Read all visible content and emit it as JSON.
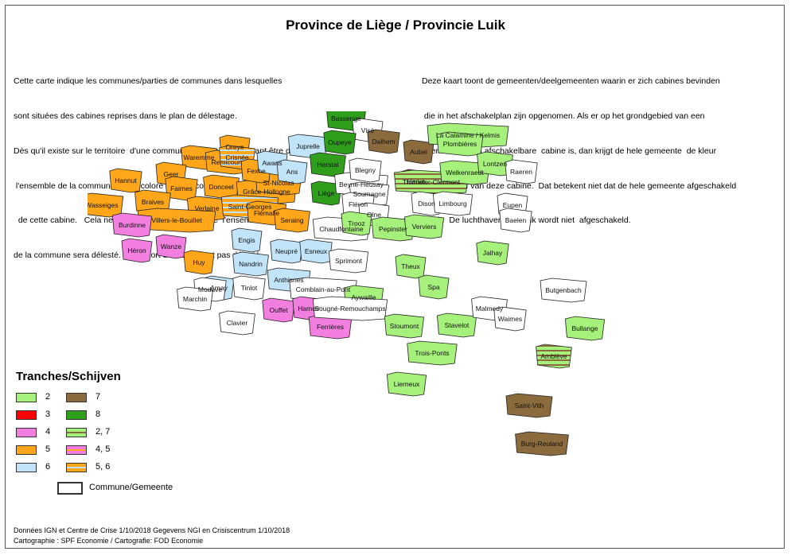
{
  "title": "Province de Liège / Provincie Luik",
  "description_fr": [
    "Cette carte indique les communes/parties de communes dans lesquelles",
    "sont situées des cabines reprises dans le plan de délestage.",
    "Dès qu'il existe sur le territoire  d'une commune, une cabine pouvant être délestée,",
    " l'ensemble de la commune  a été coloré dans la couleur de la tranche",
    "  de cette cabine.   Cela ne signifie pas pour autant que  l'ensemble",
    "de la commune sera délesté. L'aéroport de Liège n'est pas délesté."
  ],
  "description_nl": [
    "Deze kaart toont de gemeenten/deelgemeenten waarin er zich cabines bevinden",
    " die in het afschakelplan zijn opgenomen. Als er op het grondgebied van een",
    "  gemeente  een afschakelbare  cabine is, dan krijgt de hele gemeente  de kleur",
    "van de schijf van deze cabine.  Dat betekent niet dat de hele gemeente afgeschakeld",
    "wordt.  De luchthaven van Luik wordt niet  afgeschakeld."
  ],
  "legend": {
    "title": "Tranches/Schijven",
    "items": [
      {
        "label": "2",
        "color": "#a6f07c",
        "pattern": "solid"
      },
      {
        "label": "3",
        "color": "#ff0000",
        "pattern": "solid"
      },
      {
        "label": "4",
        "color": "#f27ee0",
        "pattern": "solid"
      },
      {
        "label": "5",
        "color": "#ffa61a",
        "pattern": "solid"
      },
      {
        "label": "6",
        "color": "#c2e4f8",
        "pattern": "solid"
      },
      {
        "label": "7",
        "color": "#8b6b3d",
        "pattern": "solid"
      },
      {
        "label": "8",
        "color": "#2f9e1b",
        "pattern": "solid"
      },
      {
        "label": "2, 7",
        "color": "#a6f07c",
        "pattern": "stripes-7"
      },
      {
        "label": "4, 5",
        "color": "#f27ee0",
        "pattern": "stripes-5"
      },
      {
        "label": "5, 6",
        "color": "#ffa61a",
        "pattern": "stripes-6"
      },
      {
        "label": "Commune/Gemeente",
        "color": "#ffffff",
        "pattern": "solid"
      }
    ]
  },
  "communes": [
    {
      "name": "Oreye",
      "tranche": "5"
    },
    {
      "name": "Hannut",
      "tranche": "5"
    },
    {
      "name": "Waremme",
      "tranche": "5"
    },
    {
      "name": "Remicourt",
      "tranche": "5"
    },
    {
      "name": "Geer",
      "tranche": "5"
    },
    {
      "name": "Faimes",
      "tranche": "5"
    },
    {
      "name": "Donceel",
      "tranche": "5"
    },
    {
      "name": "Wasseiges",
      "tranche": "5"
    },
    {
      "name": "Braives",
      "tranche": "5"
    },
    {
      "name": "Verlaine",
      "tranche": "5"
    },
    {
      "name": "Villers-le-Bouillet",
      "tranche": "5"
    },
    {
      "name": "Burdinne",
      "tranche": "4"
    },
    {
      "name": "Héron",
      "tranche": "4"
    },
    {
      "name": "Wanze",
      "tranche": "4"
    },
    {
      "name": "Huy",
      "tranche": "5"
    },
    {
      "name": "Amay",
      "tranche": "6"
    },
    {
      "name": "Engis",
      "tranche": "6"
    },
    {
      "name": "Nandrin",
      "tranche": "6"
    },
    {
      "name": "Neupré",
      "tranche": "6"
    },
    {
      "name": "Esneux",
      "tranche": "6"
    },
    {
      "name": "Anthisnes",
      "tranche": "6"
    },
    {
      "name": "Comblain-au-Pont",
      "tranche": ""
    },
    {
      "name": "Modave",
      "tranche": ""
    },
    {
      "name": "Marchin",
      "tranche": ""
    },
    {
      "name": "Tinlot",
      "tranche": ""
    },
    {
      "name": "Clavier",
      "tranche": ""
    },
    {
      "name": "Ouffet",
      "tranche": "4"
    },
    {
      "name": "Hamoir",
      "tranche": "4"
    },
    {
      "name": "Ferrières",
      "tranche": "4"
    },
    {
      "name": "Grâce-Hollogne",
      "tranche": "5"
    },
    {
      "name": "Saint-Georges",
      "tranche": "5, 6"
    },
    {
      "name": "St-Nicolas",
      "tranche": "5"
    },
    {
      "name": "Flémalle",
      "tranche": "5"
    },
    {
      "name": "Seraing",
      "tranche": "5"
    },
    {
      "name": "Crisnée",
      "tranche": "5, 6"
    },
    {
      "name": "Fexhe",
      "tranche": "5"
    },
    {
      "name": "Awans",
      "tranche": "6"
    },
    {
      "name": "Juprelle",
      "tranche": "6"
    },
    {
      "name": "Ans",
      "tranche": "6"
    },
    {
      "name": "Bassenge",
      "tranche": "8"
    },
    {
      "name": "Visé",
      "tranche": ""
    },
    {
      "name": "Oupeye",
      "tranche": "8"
    },
    {
      "name": "Herstal",
      "tranche": "8"
    },
    {
      "name": "Liège",
      "tranche": "8"
    },
    {
      "name": "Beyne-Heusay",
      "tranche": ""
    },
    {
      "name": "Soumagne",
      "tranche": ""
    },
    {
      "name": "Blegny",
      "tranche": ""
    },
    {
      "name": "Fléron",
      "tranche": ""
    },
    {
      "name": "Olne",
      "tranche": ""
    },
    {
      "name": "Chaudfontaine",
      "tranche": ""
    },
    {
      "name": "Trooz",
      "tranche": "2"
    },
    {
      "name": "Pepinster",
      "tranche": "2"
    },
    {
      "name": "Sprimont",
      "tranche": ""
    },
    {
      "name": "Dalhem",
      "tranche": "7"
    },
    {
      "name": "Aubel",
      "tranche": "7"
    },
    {
      "name": "Herve",
      "tranche": "7"
    },
    {
      "name": "Thimister-Clermont",
      "tranche": "2, 7"
    },
    {
      "name": "La Calamine / Kelmis",
      "tranche": "2"
    },
    {
      "name": "Plombières",
      "tranche": "2"
    },
    {
      "name": "Welkenraedt",
      "tranche": "2"
    },
    {
      "name": "Lontzen",
      "tranche": "2"
    },
    {
      "name": "Raeren",
      "tranche": ""
    },
    {
      "name": "Dison",
      "tranche": ""
    },
    {
      "name": "Limbourg",
      "tranche": ""
    },
    {
      "name": "Eupen",
      "tranche": ""
    },
    {
      "name": "Baelen",
      "tranche": ""
    },
    {
      "name": "Verviers",
      "tranche": "2"
    },
    {
      "name": "Jalhay",
      "tranche": "2"
    },
    {
      "name": "Theux",
      "tranche": "2"
    },
    {
      "name": "Spa",
      "tranche": "2"
    },
    {
      "name": "Aywaille",
      "tranche": "2"
    },
    {
      "name": "Sougné-Remouchamps",
      "tranche": ""
    },
    {
      "name": "Stoumont",
      "tranche": "2"
    },
    {
      "name": "Stavelot",
      "tranche": "2"
    },
    {
      "name": "Trois-Ponts",
      "tranche": "2"
    },
    {
      "name": "Malmedy",
      "tranche": ""
    },
    {
      "name": "Waimes",
      "tranche": ""
    },
    {
      "name": "Butgenbach",
      "tranche": ""
    },
    {
      "name": "Bullange",
      "tranche": "2"
    },
    {
      "name": "Amblève",
      "tranche": "2, 7"
    },
    {
      "name": "Lierneux",
      "tranche": "2"
    },
    {
      "name": "Saint-Vith",
      "tranche": "7"
    },
    {
      "name": "Burg-Reuland",
      "tranche": "7"
    }
  ],
  "footer": {
    "line1": "Données IGN et Centre de Crise 1/10/2018  Gegevens NGI en Crisiscentrum 1/10/2018",
    "line2": "Cartographie : SPF Economie / Cartografie: FOD Economie"
  }
}
